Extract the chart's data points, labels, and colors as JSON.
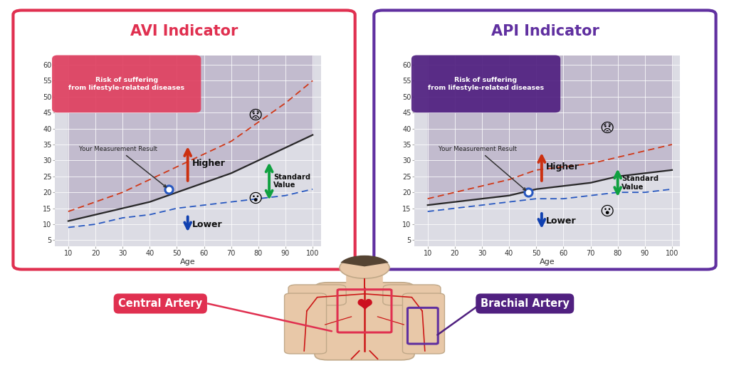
{
  "bg_color": "#ffffff",
  "avi_title": "AVI Indicator",
  "api_title": "API Indicator",
  "avi_border_color": "#e03050",
  "api_border_color": "#6030a0",
  "risk_label": "Risk of suffering\nfrom lifestyle-related diseases",
  "avi_risk_color": "#e04060",
  "api_risk_color": "#502080",
  "measurement_label": "Your Measurement Result",
  "higher_label": "Higher",
  "lower_label": "Lower",
  "standard_value_label": "Standard\nValue",
  "age_label": "Age",
  "central_artery_label": "Central Artery",
  "brachial_artery_label": "Brachial Artery",
  "central_artery_color": "#e03050",
  "brachial_artery_color": "#502080",
  "x_ticks": [
    10,
    20,
    30,
    40,
    50,
    60,
    70,
    80,
    90,
    100
  ],
  "y_ticks": [
    5,
    10,
    15,
    20,
    25,
    30,
    35,
    40,
    45,
    50,
    55,
    60
  ],
  "xlim": [
    5,
    103
  ],
  "ylim": [
    3,
    63
  ],
  "ages": [
    10,
    20,
    30,
    40,
    50,
    60,
    70,
    80,
    90,
    100
  ],
  "avi_upper": [
    14,
    17,
    20,
    24,
    28,
    32,
    36,
    42,
    48,
    55
  ],
  "avi_lower": [
    9,
    10,
    12,
    13,
    15,
    16,
    17,
    18,
    19,
    21
  ],
  "avi_mean": [
    11,
    13,
    15,
    17,
    20,
    23,
    26,
    30,
    34,
    38
  ],
  "api_upper": [
    18,
    20,
    22,
    24,
    27,
    28,
    29,
    31,
    33,
    35
  ],
  "api_lower": [
    14,
    15,
    16,
    17,
    18,
    18,
    19,
    20,
    20,
    21
  ],
  "api_mean": [
    16,
    17,
    18,
    19,
    21,
    22,
    23,
    25,
    26,
    27
  ],
  "measurement_dot_age": 47,
  "avi_measurement_val": 21,
  "api_measurement_val": 20,
  "title_fontsize": 15,
  "axis_fontsize": 7,
  "label_fontsize": 8,
  "higher_arrow_color": "#cc3010",
  "lower_arrow_color": "#1040b0",
  "standard_arrow_color": "#10a040",
  "skin_color": "#e8c8a8",
  "artery_color": "#cc1818"
}
